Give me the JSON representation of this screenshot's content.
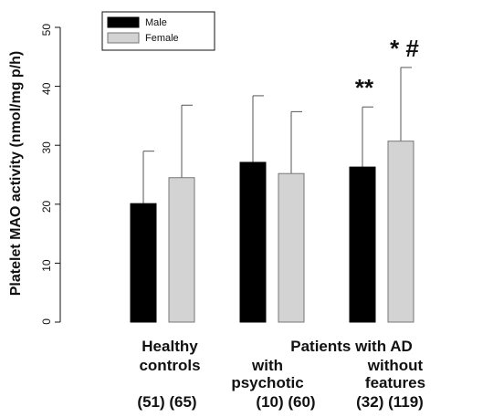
{
  "chart_data": {
    "type": "bar",
    "ylabel": "Platelet MAO activity (nmol/mg p/h)",
    "ylim": [
      0,
      50
    ],
    "yticks": [
      0,
      10,
      20,
      30,
      40,
      50
    ],
    "legend": {
      "placement": "top-left",
      "entries": [
        "Male",
        "Female"
      ]
    },
    "series": [
      {
        "name": "Male",
        "color": "#000000",
        "values": [
          20.1,
          27.1,
          26.3
        ],
        "errors": [
          8.9,
          11.3,
          10.2
        ]
      },
      {
        "name": "Female",
        "color": "#d3d3d3",
        "values": [
          24.5,
          25.2,
          30.7
        ],
        "errors": [
          12.3,
          10.5,
          12.5
        ]
      }
    ],
    "groups": [
      {
        "label_lines": [
          "Healthy",
          "controls"
        ],
        "n_label": "(51) (65)"
      },
      {
        "label_lines": [
          "",
          "with",
          "psychotic"
        ],
        "n_label": "(10) (60)"
      },
      {
        "label_lines": [
          "",
          "without",
          "features"
        ],
        "n_label": "(32) (119)"
      }
    ],
    "patients_label": "Patients with AD",
    "annotations": [
      {
        "text": "**",
        "group": 2,
        "series": 0
      },
      {
        "text": "* #",
        "group": 2,
        "series": 1
      }
    ],
    "grid": false
  }
}
